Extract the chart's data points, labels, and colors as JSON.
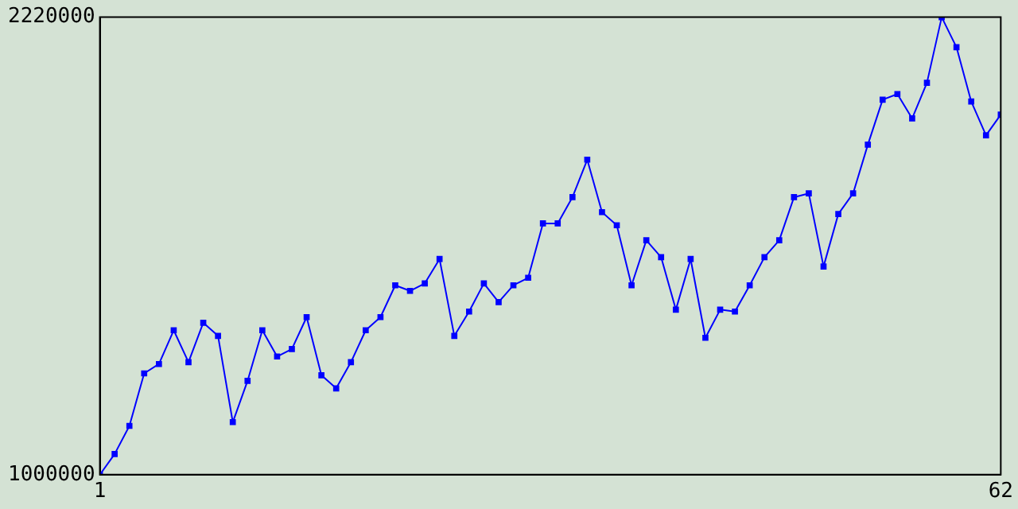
{
  "chart_data": {
    "type": "line",
    "x": [
      1,
      2,
      3,
      4,
      5,
      6,
      7,
      8,
      9,
      10,
      11,
      12,
      13,
      14,
      15,
      16,
      17,
      18,
      19,
      20,
      21,
      22,
      23,
      24,
      25,
      26,
      27,
      28,
      29,
      30,
      31,
      32,
      33,
      34,
      35,
      36,
      37,
      38,
      39,
      40,
      41,
      42,
      43,
      44,
      45,
      46,
      47,
      48,
      49,
      50,
      51,
      52,
      53,
      54,
      55,
      56,
      57,
      58,
      59,
      60,
      61,
      62
    ],
    "series": [
      {
        "color": "#0000ff",
        "values": [
          1000000,
          1055000,
          1130000,
          1270000,
          1295000,
          1385000,
          1300000,
          1405000,
          1370000,
          1140000,
          1250000,
          1385000,
          1315000,
          1335000,
          1420000,
          1265000,
          1230000,
          1300000,
          1385000,
          1420000,
          1505000,
          1490000,
          1510000,
          1575000,
          1370000,
          1435000,
          1510000,
          1460000,
          1505000,
          1525000,
          1670000,
          1670000,
          1740000,
          1840000,
          1700000,
          1665000,
          1505000,
          1625000,
          1580000,
          1440000,
          1575000,
          1365000,
          1440000,
          1435000,
          1505000,
          1580000,
          1625000,
          1740000,
          1750000,
          1555000,
          1695000,
          1750000,
          1880000,
          2000000,
          2015000,
          1950000,
          2045000,
          2220000,
          2140000,
          1995000,
          1905000,
          1960000
        ]
      }
    ],
    "xlim": [
      1,
      62
    ],
    "xticks": [
      1,
      62
    ],
    "ylim": [
      1000000,
      2220000
    ],
    "yticks": [
      1000000,
      2220000
    ],
    "grid": false,
    "legend": false,
    "marker": "square",
    "line_style": "solid"
  }
}
